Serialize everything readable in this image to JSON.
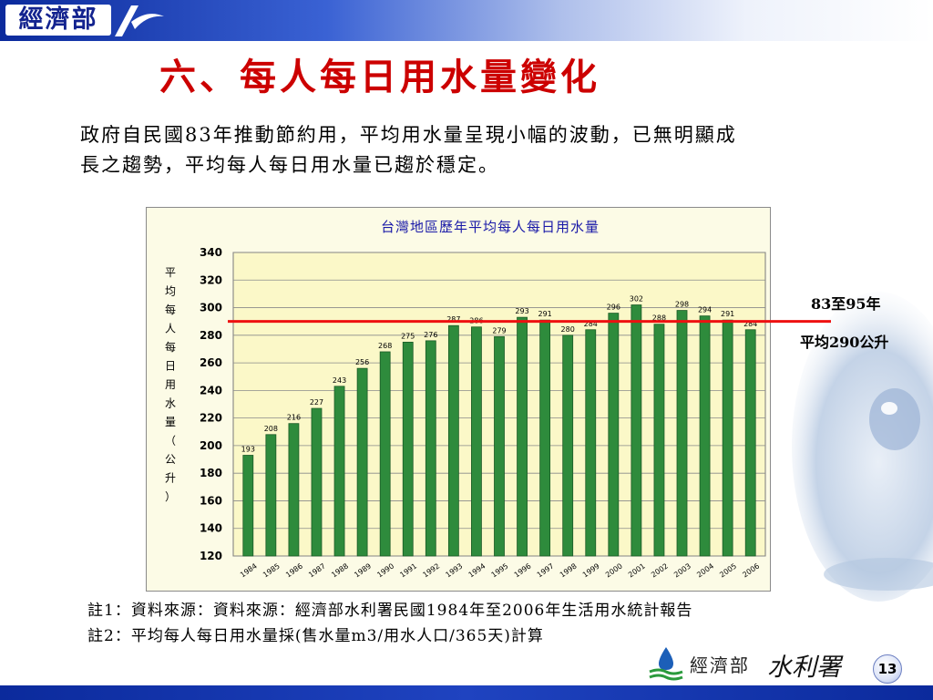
{
  "header": {
    "logo_text": "經濟部"
  },
  "slide": {
    "title": "六、每人每日用水量變化",
    "intro_line1": "政府自民國83年推動節約用，平均用水量呈現小幅的波動，已無明顯成",
    "intro_line2": "長之趨勢，平均每人每日用水量已趨於穩定。"
  },
  "callout": {
    "line1": "83至95年",
    "line2": "平均290公升"
  },
  "notes": {
    "note1": "註1：資料來源：資料來源：經濟部水利署民國1984年至2006年生活用水統計報告",
    "note2": "註2：平均每人每日用水量採(售水量m3/用水人口/365天)計算"
  },
  "footer": {
    "org_text": "經濟部",
    "agency_text": "水利署",
    "page_number": "13"
  },
  "colors": {
    "bar_fill": "#2e8b3c",
    "reference_line": "#ee1111",
    "title": "#cc0000",
    "chart_title": "#1a1aa8",
    "plot_bg": "#fbf8c8"
  },
  "chart_data": {
    "type": "bar",
    "title": "台灣地區歷年平均每人每日用水量",
    "ylabel": "平均每人每日用水量（公升）",
    "xlabel": "",
    "categories": [
      "1984",
      "1985",
      "1986",
      "1987",
      "1988",
      "1989",
      "1990",
      "1991",
      "1992",
      "1993",
      "1994",
      "1995",
      "1996",
      "1997",
      "1998",
      "1999",
      "2000",
      "2001",
      "2002",
      "2003",
      "2004",
      "2005",
      "2006"
    ],
    "values": [
      193,
      208,
      216,
      227,
      243,
      256,
      268,
      275,
      276,
      287,
      286,
      279,
      293,
      291,
      280,
      284,
      296,
      302,
      288,
      298,
      294,
      291,
      284
    ],
    "ylim": [
      120,
      340
    ],
    "yticks": [
      120,
      140,
      160,
      180,
      200,
      220,
      240,
      260,
      280,
      300,
      320,
      340
    ],
    "grid": true,
    "legend": "none",
    "reference_line": {
      "value": 290
    }
  }
}
